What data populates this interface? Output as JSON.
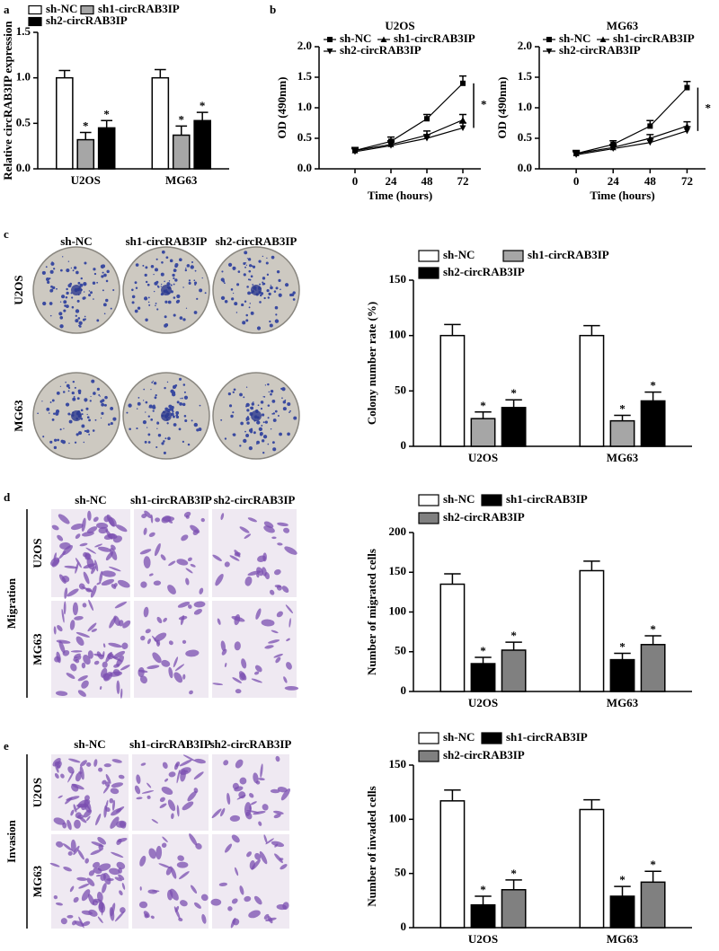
{
  "panel_labels": [
    "a",
    "b",
    "c",
    "d",
    "e"
  ],
  "image_panels": [
    {
      "columns": [
        "sh-NC",
        "sh1-circRAB3IP",
        "sh2-circRAB3IP"
      ],
      "rows": [
        "U2OS",
        "MG63"
      ]
    },
    {
      "group": "Migration",
      "columns": [
        "sh-NC",
        "sh1-circRAB3IP",
        "sh2-circRAB3IP"
      ],
      "rows": [
        "U2OS",
        "MG63"
      ]
    },
    {
      "group": "Invasion",
      "columns": [
        "sh-NC",
        "sh1-circRAB3IP",
        "sh2-circRAB3IP"
      ],
      "rows": [
        "U2OS",
        "MG63"
      ]
    }
  ],
  "chart_data": [
    {
      "type": "bar",
      "ylabel": "Relative circRAB3IP expression",
      "categories": [
        "U2OS",
        "MG63"
      ],
      "ylim": [
        0,
        1.5
      ],
      "yticks": [
        {
          "value": 0,
          "label": "0.0"
        },
        0.5,
        {
          "value": 1,
          "label": "1.0"
        },
        1.5
      ],
      "series": [
        {
          "name": "sh-NC",
          "color": "#ffffff",
          "values": [
            1.0,
            1.0
          ],
          "errors": [
            0.08,
            0.09
          ]
        },
        {
          "name": "sh1-circRAB3IP",
          "color": "#a6a6a6",
          "values": [
            0.32,
            0.37
          ],
          "errors": [
            0.08,
            0.1
          ],
          "significance": [
            "*",
            "*"
          ]
        },
        {
          "name": "sh2-circRAB3IP",
          "color": "#000000",
          "values": [
            0.45,
            0.53
          ],
          "errors": [
            0.08,
            0.09
          ],
          "significance": [
            "*",
            "*"
          ]
        }
      ]
    },
    {
      "type": "line",
      "title": "U2OS",
      "xlabel": "Time (hours)",
      "ylabel": "OD (490nm)",
      "annotation": "*",
      "x": [
        0,
        24,
        48,
        72
      ],
      "xlim": [
        -24,
        84
      ],
      "xticks": [
        0,
        24,
        48,
        72
      ],
      "ylim": [
        0,
        2
      ],
      "yticks": [
        {
          "value": 0,
          "label": "0.0"
        },
        0.5,
        {
          "value": 1,
          "label": "1.0"
        },
        1.5,
        {
          "value": 2,
          "label": "2.0"
        }
      ],
      "series": [
        {
          "name": "sh-NC",
          "color": "#000000",
          "values": [
            0.3,
            0.45,
            0.82,
            1.4
          ],
          "errors": [
            0.05,
            0.07,
            0.07,
            0.12
          ]
        },
        {
          "name": "sh1-circRAB3IP",
          "color": "#000000",
          "values": [
            0.3,
            0.4,
            0.55,
            0.8
          ],
          "errors": [
            0.05,
            0.06,
            0.07,
            0.09
          ]
        },
        {
          "name": "sh2-circRAB3IP",
          "color": "#000000",
          "values": [
            0.28,
            0.38,
            0.5,
            0.67
          ],
          "errors": [
            0.05,
            0.06,
            0.06,
            0.08
          ]
        }
      ]
    },
    {
      "type": "line",
      "title": "MG63",
      "xlabel": "Time (hours)",
      "ylabel": "OD (490nm)",
      "annotation": "*",
      "x": [
        0,
        24,
        48,
        72
      ],
      "xlim": [
        -24,
        84
      ],
      "xticks": [
        0,
        24,
        48,
        72
      ],
      "ylim": [
        0,
        2
      ],
      "yticks": [
        {
          "value": 0,
          "label": "0.0"
        },
        0.5,
        {
          "value": 1,
          "label": "1.0"
        },
        1.5,
        {
          "value": 2,
          "label": "2.0"
        }
      ],
      "series": [
        {
          "name": "sh-NC",
          "color": "#000000",
          "values": [
            0.25,
            0.4,
            0.7,
            1.33
          ],
          "errors": [
            0.05,
            0.06,
            0.09,
            0.1
          ]
        },
        {
          "name": "sh1-circRAB3IP",
          "color": "#000000",
          "values": [
            0.25,
            0.35,
            0.5,
            0.7
          ],
          "errors": [
            0.05,
            0.05,
            0.06,
            0.07
          ]
        },
        {
          "name": "sh2-circRAB3IP",
          "color": "#000000",
          "values": [
            0.23,
            0.33,
            0.43,
            0.62
          ],
          "errors": [
            0.05,
            0.05,
            0.06,
            0.07
          ]
        }
      ]
    },
    {
      "type": "bar",
      "ylabel": "Colony number rate (%)",
      "categories": [
        "U2OS",
        "MG63"
      ],
      "ylim": [
        0,
        150
      ],
      "yticks": [
        0,
        50,
        100,
        150
      ],
      "series": [
        {
          "name": "sh-NC",
          "color": "#ffffff",
          "values": [
            100,
            100
          ],
          "errors": [
            10,
            9
          ]
        },
        {
          "name": "sh1-circRAB3IP",
          "color": "#a6a6a6",
          "values": [
            25,
            23
          ],
          "errors": [
            6,
            5
          ],
          "significance": [
            "*",
            "*"
          ]
        },
        {
          "name": "sh2-circRAB3IP",
          "color": "#000000",
          "values": [
            35,
            41
          ],
          "errors": [
            7,
            8
          ],
          "significance": [
            "*",
            "*"
          ]
        }
      ]
    },
    {
      "type": "bar",
      "ylabel": "Number of migrated cells",
      "categories": [
        "U2OS",
        "MG63"
      ],
      "ylim": [
        0,
        200
      ],
      "yticks": [
        0,
        50,
        100,
        150,
        200
      ],
      "series": [
        {
          "name": "sh-NC",
          "color": "#ffffff",
          "values": [
            135,
            152
          ],
          "errors": [
            13,
            12
          ]
        },
        {
          "name": "sh1-circRAB3IP",
          "color": "#000000",
          "values": [
            35,
            40
          ],
          "errors": [
            8,
            8
          ],
          "significance": [
            "*",
            "*"
          ]
        },
        {
          "name": "sh2-circRAB3IP",
          "color": "#808080",
          "values": [
            52,
            59
          ],
          "errors": [
            10,
            11
          ],
          "significance": [
            "*",
            "*"
          ]
        }
      ]
    },
    {
      "type": "bar",
      "ylabel": "Number of invaded cells",
      "categories": [
        "U2OS",
        "MG63"
      ],
      "ylim": [
        0,
        150
      ],
      "yticks": [
        0,
        50,
        100,
        150
      ],
      "series": [
        {
          "name": "sh-NC",
          "color": "#ffffff",
          "values": [
            117,
            109
          ],
          "errors": [
            10,
            9
          ]
        },
        {
          "name": "sh1-circRAB3IP",
          "color": "#000000",
          "values": [
            21,
            29
          ],
          "errors": [
            8,
            9
          ],
          "significance": [
            "*",
            "*"
          ]
        },
        {
          "name": "sh2-circRAB3IP",
          "color": "#808080",
          "values": [
            35,
            42
          ],
          "errors": [
            9,
            10
          ],
          "significance": [
            "*",
            "*"
          ]
        }
      ]
    }
  ]
}
